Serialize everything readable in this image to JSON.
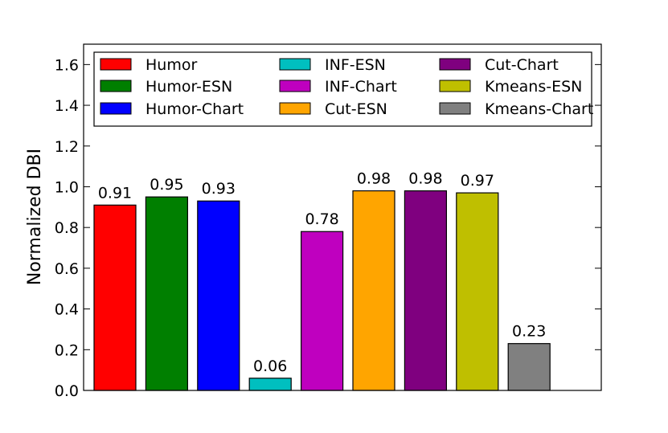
{
  "chart_data": {
    "type": "bar",
    "title": "",
    "xlabel": "",
    "ylabel": "Normalized DBI",
    "ylim": [
      0.0,
      1.7
    ],
    "yticks": [
      "0.0",
      "0.2",
      "0.4",
      "0.6",
      "0.8",
      "1.0",
      "1.2",
      "1.4",
      "1.6"
    ],
    "legend_position": "top",
    "categories": [
      "Humor",
      "Humor-ESN",
      "Humor-Chart",
      "INF-ESN",
      "INF-Chart",
      "Cut-ESN",
      "Cut-Chart",
      "Kmeans-ESN",
      "Kmeans-Chart"
    ],
    "values": [
      0.91,
      0.95,
      0.93,
      0.06,
      0.78,
      0.98,
      0.98,
      0.97,
      0.23
    ],
    "value_labels": [
      "0.91",
      "0.95",
      "0.93",
      "0.06",
      "0.78",
      "0.98",
      "0.98",
      "0.97",
      "0.23"
    ],
    "colors": [
      "#ff0000",
      "#007f00",
      "#0000ff",
      "#00bfbf",
      "#bf00bf",
      "#ffa500",
      "#7f007f",
      "#bfbf00",
      "#808080"
    ]
  }
}
